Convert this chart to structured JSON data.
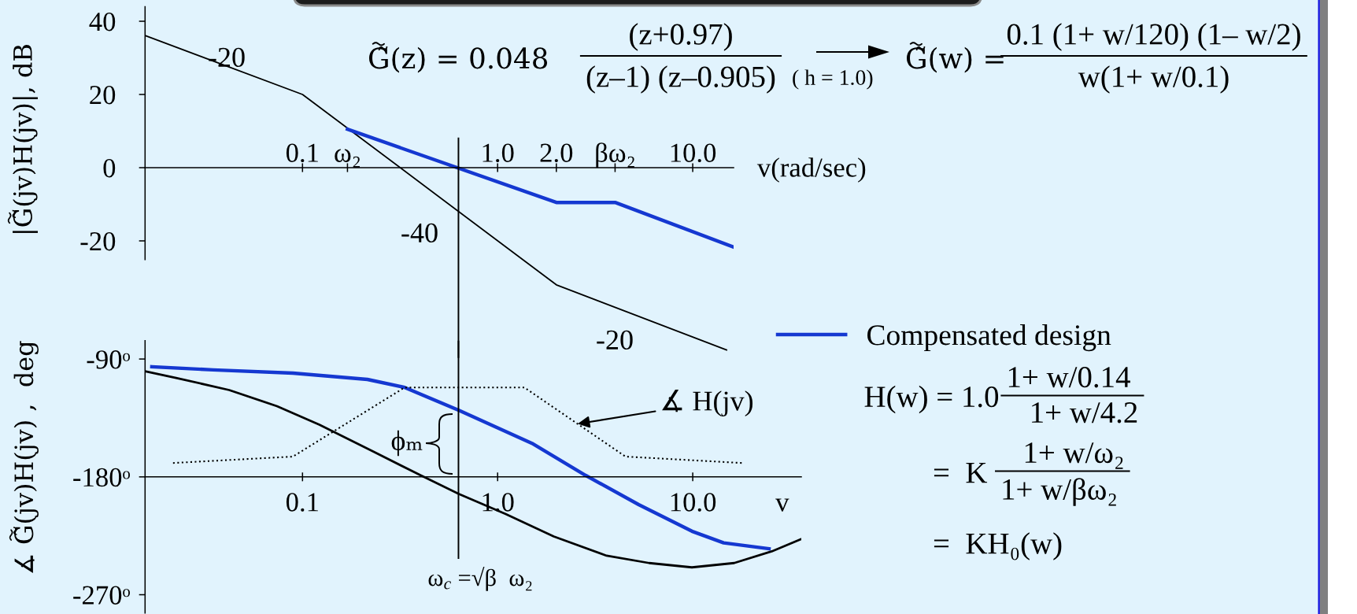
{
  "chart_data": [
    {
      "type": "line",
      "xlabel": "v(rad/sec)",
      "ylabel": "|G̃(jv)H(jv)|, dB",
      "log": "x",
      "xlim": [
        0.0156,
        16.2
      ],
      "xticks": [
        0.1,
        {
          "value": 0.17,
          "label": "ω₂"
        },
        {
          "value": 1,
          "label": "1.0"
        },
        {
          "value": 2,
          "label": "2.0"
        },
        {
          "value": 4.0,
          "label": "βω₂"
        },
        {
          "value": 10,
          "label": "10.0"
        }
      ],
      "ylim": [
        -52,
        44
      ],
      "yticks": [
        40,
        20,
        0,
        -20
      ],
      "series": [
        {
          "color": "#000000",
          "x": [
            0.0156,
            0.1,
            2.0,
            14.9
          ],
          "values": [
            36.1,
            20,
            -32,
            -49.8
          ]
        },
        {
          "color": "#1538d1",
          "x": [
            0.17,
            2.0,
            4.0,
            16.2
          ],
          "values": [
            10.5,
            -9.5,
            -9.5,
            -21.7
          ]
        }
      ],
      "ref_lines": [
        {
          "axis": "x",
          "value": 0.63
        }
      ],
      "annotations": [
        "-20",
        "-40",
        "-20",
        "G̃(z) = 0.048",
        "(z+0.97)",
        "(z–1) (z–0.905)",
        "( h = 1.0)",
        "G̃(w) =",
        "0.1 (1+ w/120) (1– w/2)",
        "w(1+ w/0.1)"
      ]
    },
    {
      "type": "line",
      "xlabel": "v",
      "ylabel": "∡ G̃(jv)H(jv) ,  deg",
      "log": "x",
      "legend": "top right",
      "xlim": [
        0.0156,
        36
      ],
      "xticks": [
        0.1,
        {
          "value": 1,
          "label": "1.0"
        },
        {
          "value": 10,
          "label": "10.0"
        }
      ],
      "ylim": [
        -284,
        -76
      ],
      "yticks": [
        {
          "value": -90,
          "label": "-90ᵒ"
        },
        {
          "value": -180,
          "label": "-180ᵒ"
        },
        {
          "value": -270,
          "label": "-270ᵒ"
        }
      ],
      "series": [
        {
          "color": "#000000",
          "x": [
            0.0156,
            0.0225,
            0.0421,
            0.074,
            0.122,
            0.229,
            0.403,
            0.633,
            1.1,
            1.94,
            3.62,
            5.98,
            9.9,
            16.3,
            25.4,
            35.9
          ],
          "values": [
            -99.3,
            -104.4,
            -113.7,
            -126,
            -140.2,
            -160.5,
            -178.8,
            -193,
            -208.4,
            -225.5,
            -240.2,
            -245.8,
            -249.1,
            -245.8,
            -236.9,
            -227.6
          ]
        },
        {
          "name": "Compensated design",
          "color": "#1538d1",
          "x": [
            0.0169,
            0.0348,
            0.0893,
            0.215,
            0.334,
            0.633,
            1.5,
            2.82,
            5.28,
            9.9,
            14.4,
            24.6
          ],
          "values": [
            -95.9,
            -98.3,
            -100.8,
            -105.6,
            -111.7,
            -129.2,
            -154.4,
            -178.8,
            -201.2,
            -221.5,
            -230.4,
            -234.9
          ]
        },
        {
          "color": "#000000",
          "line_style": "dotted",
          "x": [
            0.0217,
            0.0893,
            0.334,
            1.37,
            4.52,
            17.9
          ],
          "values": [
            -169.4,
            -164.5,
            -111.7,
            -111.7,
            -164.5,
            -169.4
          ]
        }
      ],
      "ref_lines": [
        {
          "axis": "x",
          "value": 0.63,
          "label": "ω$_{c}$ =√β  ω₂"
        }
      ],
      "annotations": [
        {
          "text": "∡ H(jv)",
          "x": 2.57,
          "y": -139.5
        },
        "ϕₘ",
        "H(w) = 1.0",
        "1+ w/0.14",
        "1+ w/4.2",
        "=  K",
        "1+ w/ω₂",
        "1+ w/βω₂",
        "=  KH₀(w)"
      ]
    }
  ]
}
